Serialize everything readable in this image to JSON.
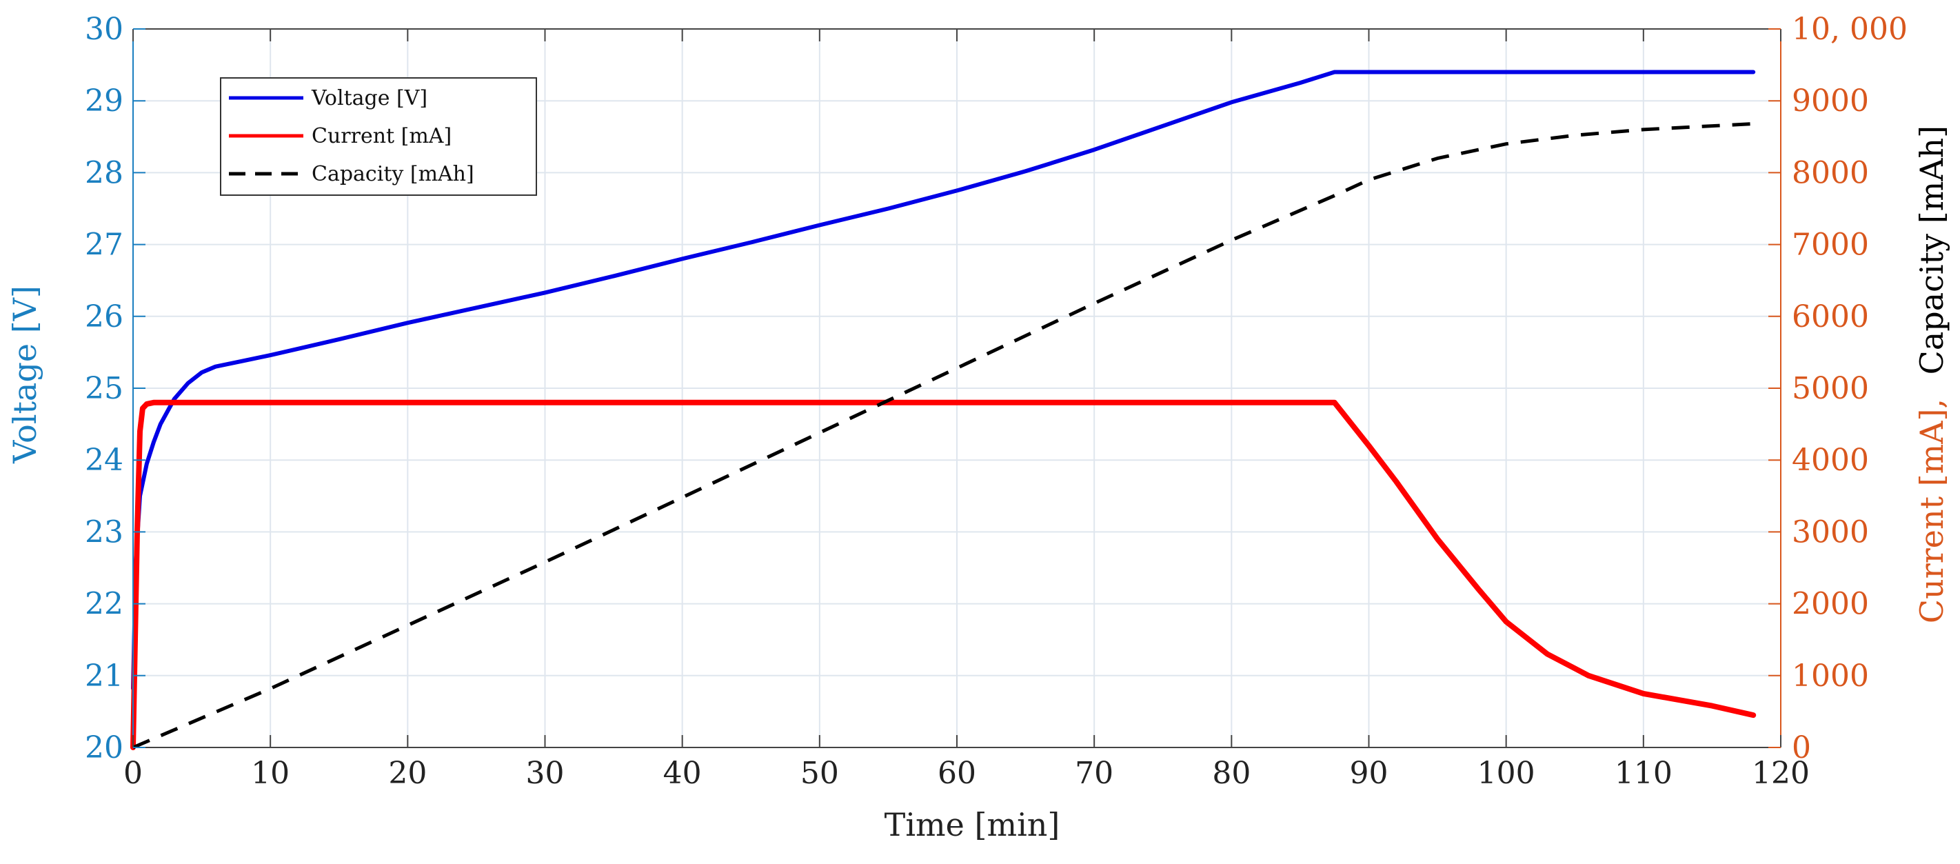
{
  "chart_data": {
    "type": "line",
    "title": "",
    "xlabel": "Time [min]",
    "ylabel_left": "Voltage [V]",
    "ylabel_right": {
      "current_part": "Current [mA],",
      "capacity_part": "Capacity [mAh]"
    },
    "xlim": [
      0,
      120
    ],
    "ylim_left": [
      20,
      30
    ],
    "ylim_right": [
      0,
      10000
    ],
    "x_ticks": [
      {
        "v": 0,
        "label": "0"
      },
      {
        "v": 10,
        "label": "10"
      },
      {
        "v": 20,
        "label": "20"
      },
      {
        "v": 30,
        "label": "30"
      },
      {
        "v": 40,
        "label": "40"
      },
      {
        "v": 50,
        "label": "50"
      },
      {
        "v": 60,
        "label": "60"
      },
      {
        "v": 70,
        "label": "70"
      },
      {
        "v": 80,
        "label": "80"
      },
      {
        "v": 90,
        "label": "90"
      },
      {
        "v": 100,
        "label": "100"
      },
      {
        "v": 110,
        "label": "110"
      },
      {
        "v": 120,
        "label": "120"
      }
    ],
    "y_left_ticks": [
      {
        "v": 20,
        "label": "20"
      },
      {
        "v": 21,
        "label": "21"
      },
      {
        "v": 22,
        "label": "22"
      },
      {
        "v": 23,
        "label": "23"
      },
      {
        "v": 24,
        "label": "24"
      },
      {
        "v": 25,
        "label": "25"
      },
      {
        "v": 26,
        "label": "26"
      },
      {
        "v": 27,
        "label": "27"
      },
      {
        "v": 28,
        "label": "28"
      },
      {
        "v": 29,
        "label": "29"
      },
      {
        "v": 30,
        "label": "30"
      }
    ],
    "y_right_ticks": [
      {
        "v": 0,
        "label": "0"
      },
      {
        "v": 1000,
        "label": "1000"
      },
      {
        "v": 2000,
        "label": "2000"
      },
      {
        "v": 3000,
        "label": "3000"
      },
      {
        "v": 4000,
        "label": "4000"
      },
      {
        "v": 5000,
        "label": "5000"
      },
      {
        "v": 6000,
        "label": "6000"
      },
      {
        "v": 7000,
        "label": "7000"
      },
      {
        "v": 8000,
        "label": "8000"
      },
      {
        "v": 9000,
        "label": "9000"
      },
      {
        "v": 10000,
        "label": "10, 000"
      }
    ],
    "grid": true,
    "legend_position": "top-left",
    "colors": {
      "voltage": "#0000e6",
      "current": "#ff0000",
      "capacity": "#000000",
      "left_axis": "#1a7fc0",
      "right_axis": "#d9571d",
      "grid": "#dfe6ee",
      "axis": "#444444"
    },
    "series": [
      {
        "name": "Voltage [V]",
        "axis": "left",
        "style": "solid",
        "x": [
          0,
          0.2,
          0.5,
          1,
          1.5,
          2,
          3,
          4,
          5,
          6,
          8,
          10,
          15,
          20,
          25,
          30,
          35,
          40,
          45,
          50,
          55,
          60,
          65,
          70,
          75,
          80,
          85,
          87.5,
          90,
          100,
          110,
          118
        ],
        "y": [
          20.82,
          22.6,
          23.5,
          23.95,
          24.25,
          24.5,
          24.85,
          25.07,
          25.22,
          25.3,
          25.38,
          25.46,
          25.68,
          25.91,
          26.12,
          26.33,
          26.56,
          26.8,
          27.03,
          27.27,
          27.5,
          27.75,
          28.02,
          28.32,
          28.65,
          28.98,
          29.25,
          29.4,
          29.4,
          29.4,
          29.4,
          29.4
        ]
      },
      {
        "name": "Current [mA]",
        "axis": "right",
        "style": "solid",
        "x": [
          0,
          0.1,
          0.3,
          0.5,
          0.7,
          1.0,
          1.5,
          5,
          20,
          40,
          60,
          80,
          87.5,
          90,
          92,
          95,
          98,
          100,
          103,
          106,
          110,
          115,
          118
        ],
        "y": [
          0,
          1000,
          3000,
          4400,
          4720,
          4780,
          4800,
          4800,
          4800,
          4800,
          4800,
          4800,
          4800,
          4200,
          3700,
          2900,
          2200,
          1750,
          1300,
          1000,
          750,
          580,
          450
        ]
      },
      {
        "name": "Capacity [mAh]",
        "axis": "right",
        "style": "dashed",
        "x": [
          0,
          10,
          20,
          30,
          40,
          50,
          60,
          70,
          80,
          87.5,
          90,
          95,
          100,
          105,
          110,
          118
        ],
        "y": [
          0,
          820,
          1700,
          2580,
          3480,
          4380,
          5280,
          6180,
          7060,
          7680,
          7900,
          8200,
          8400,
          8520,
          8600,
          8680
        ]
      }
    ]
  }
}
